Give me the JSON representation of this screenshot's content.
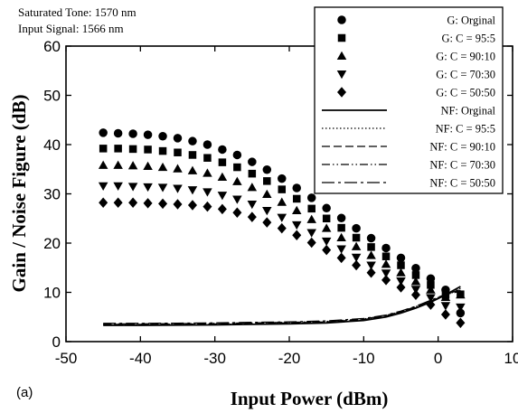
{
  "annotations": {
    "line1": "Saturated Tone: 1570 nm",
    "line2": "Input Signal: 1566 nm"
  },
  "panel_label": "(a)",
  "chart_data": {
    "type": "scatter",
    "xlabel": "Input Power (dBm)",
    "ylabel": "Gain / Noise Figure (dB)",
    "xlim": [
      -50,
      10
    ],
    "ylim": [
      0,
      60
    ],
    "xticks": [
      -50,
      -40,
      -30,
      -20,
      -10,
      0,
      10
    ],
    "yticks": [
      0,
      10,
      20,
      30,
      40,
      50,
      60
    ],
    "grid": false,
    "legend_position": "top-right",
    "gain_x": [
      -45,
      -43,
      -41,
      -39,
      -37,
      -35,
      -33,
      -31,
      -29,
      -27,
      -25,
      -23,
      -21,
      -19,
      -17,
      -15,
      -13,
      -11,
      -9,
      -7,
      -5,
      -3,
      -1,
      1,
      3
    ],
    "series": [
      {
        "name": "G: Orginal",
        "kind": "marker",
        "marker": "circle",
        "values": [
          42.4,
          42.3,
          42.2,
          42.0,
          41.7,
          41.3,
          40.7,
          40.0,
          39.0,
          37.9,
          36.5,
          34.9,
          33.1,
          31.2,
          29.2,
          27.1,
          25.1,
          23.0,
          21.0,
          19.0,
          17.0,
          14.9,
          12.8,
          10.5,
          5.8
        ]
      },
      {
        "name": "G: C = 95:5",
        "kind": "marker",
        "marker": "square",
        "values": [
          39.2,
          39.2,
          39.1,
          39.0,
          38.7,
          38.4,
          37.9,
          37.3,
          36.4,
          35.4,
          34.1,
          32.6,
          30.9,
          29.0,
          27.0,
          25.0,
          23.1,
          21.1,
          19.2,
          17.3,
          15.5,
          13.5,
          11.5,
          9.5,
          9.6
        ]
      },
      {
        "name": "G: C = 90:10",
        "kind": "marker",
        "marker": "triangle",
        "values": [
          35.8,
          35.8,
          35.7,
          35.6,
          35.4,
          35.1,
          34.7,
          34.2,
          33.4,
          32.5,
          31.3,
          29.9,
          28.3,
          26.6,
          24.8,
          23.0,
          21.1,
          19.3,
          17.5,
          15.7,
          14.0,
          12.2,
          10.5,
          9.0,
          9.5
        ]
      },
      {
        "name": "G: C = 70:30",
        "kind": "marker",
        "marker": "triangle-down",
        "values": [
          31.6,
          31.6,
          31.5,
          31.4,
          31.3,
          31.1,
          30.8,
          30.4,
          29.7,
          28.9,
          27.9,
          26.6,
          25.2,
          23.7,
          22.1,
          20.4,
          18.8,
          17.1,
          15.5,
          13.9,
          12.3,
          10.6,
          8.9,
          7.3,
          7.0
        ]
      },
      {
        "name": "G: C = 50:50",
        "kind": "marker",
        "marker": "diamond",
        "values": [
          28.2,
          28.2,
          28.2,
          28.1,
          28.0,
          27.9,
          27.7,
          27.4,
          26.9,
          26.2,
          25.3,
          24.2,
          23.0,
          21.6,
          20.1,
          18.6,
          17.0,
          15.5,
          14.0,
          12.5,
          11.0,
          9.5,
          7.5,
          5.5,
          3.8
        ]
      },
      {
        "name": "NF: Orginal",
        "kind": "line",
        "dash": "solid",
        "x": [
          -45,
          -40,
          -35,
          -30,
          -25,
          -20,
          -15,
          -10,
          -7,
          -5,
          -3,
          -1,
          1,
          3
        ],
        "values": [
          3.3,
          3.3,
          3.35,
          3.4,
          3.5,
          3.6,
          3.8,
          4.3,
          5.0,
          5.8,
          6.8,
          8.0,
          9.5,
          11.2
        ]
      },
      {
        "name": "NF: C = 95:5",
        "kind": "line",
        "dash": "dotted",
        "x": [
          -45,
          -40,
          -35,
          -30,
          -25,
          -20,
          -15,
          -10,
          -7,
          -5,
          -3,
          -1,
          1,
          3
        ],
        "values": [
          3.4,
          3.4,
          3.45,
          3.5,
          3.6,
          3.7,
          3.9,
          4.4,
          5.1,
          5.9,
          6.9,
          8.1,
          9.4,
          10.8
        ]
      },
      {
        "name": "NF: C = 90:10",
        "kind": "line",
        "dash": "dashed",
        "x": [
          -45,
          -40,
          -35,
          -30,
          -25,
          -20,
          -15,
          -10,
          -7,
          -5,
          -3,
          -1,
          1,
          3
        ],
        "values": [
          3.5,
          3.5,
          3.55,
          3.6,
          3.7,
          3.8,
          4.0,
          4.5,
          5.2,
          6.0,
          7.0,
          8.2,
          9.5,
          10.6
        ]
      },
      {
        "name": "NF: C = 70:30",
        "kind": "line",
        "dash": "dashdotdot",
        "x": [
          -45,
          -40,
          -35,
          -30,
          -25,
          -20,
          -15,
          -10,
          -7,
          -5,
          -3,
          -1,
          1,
          3
        ],
        "values": [
          3.6,
          3.6,
          3.65,
          3.7,
          3.8,
          3.9,
          4.1,
          4.6,
          5.3,
          6.1,
          7.1,
          8.3,
          9.6,
          10.4
        ]
      },
      {
        "name": "NF: C = 50:50",
        "kind": "line",
        "dash": "longdash",
        "x": [
          -45,
          -40,
          -35,
          -30,
          -25,
          -20,
          -15,
          -10,
          -7,
          -5,
          -3,
          -1,
          1,
          3
        ],
        "values": [
          3.7,
          3.7,
          3.75,
          3.8,
          3.9,
          4.0,
          4.2,
          4.7,
          5.4,
          6.2,
          7.2,
          8.4,
          9.6,
          10.2
        ]
      }
    ]
  }
}
